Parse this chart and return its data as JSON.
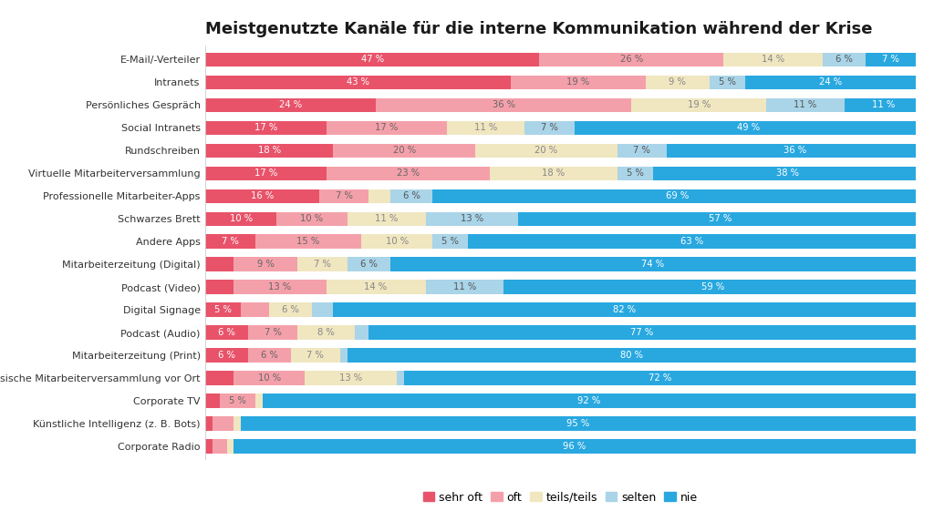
{
  "title": "Meistgenutzte Kanäle für die interne Kommunikation während der Krise",
  "categories": [
    "E-Mail/-Verteiler",
    "Intranets",
    "Persönliches Gespräch",
    "Social Intranets",
    "Rundschreiben",
    "Virtuelle Mitarbeiterversammlung",
    "Professionelle Mitarbeiter-Apps",
    "Schwarzes Brett",
    "Andere Apps",
    "Mitarbeiterzeitung (Digital)",
    "Podcast (Video)",
    "Digital Signage",
    "Podcast (Audio)",
    "Mitarbeiterzeitung (Print)",
    "Klassische Mitarbeiterversammlung vor Ort",
    "Corporate TV",
    "Künstliche Intelligenz (z. B. Bots)",
    "Corporate Radio"
  ],
  "data": [
    [
      47,
      26,
      14,
      6,
      7
    ],
    [
      43,
      19,
      9,
      5,
      24
    ],
    [
      24,
      36,
      19,
      11,
      11
    ],
    [
      17,
      17,
      11,
      7,
      49
    ],
    [
      18,
      20,
      20,
      7,
      36
    ],
    [
      17,
      23,
      18,
      5,
      38
    ],
    [
      16,
      7,
      3,
      6,
      69
    ],
    [
      10,
      10,
      11,
      13,
      57
    ],
    [
      7,
      15,
      10,
      5,
      63
    ],
    [
      4,
      9,
      7,
      6,
      74
    ],
    [
      4,
      13,
      14,
      11,
      59
    ],
    [
      5,
      4,
      6,
      3,
      82
    ],
    [
      6,
      7,
      8,
      2,
      77
    ],
    [
      6,
      6,
      7,
      1,
      80
    ],
    [
      4,
      10,
      13,
      1,
      72
    ],
    [
      2,
      5,
      1,
      0,
      92
    ],
    [
      1,
      3,
      1,
      0,
      95
    ],
    [
      1,
      2,
      1,
      0,
      96
    ]
  ],
  "colors": [
    "#e8536a",
    "#f4a0aa",
    "#f0e6c0",
    "#aad4e8",
    "#29a8e0"
  ],
  "legend_labels": [
    "sehr oft",
    "oft",
    "teils/teils",
    "selten",
    "nie"
  ],
  "background_color": "#ffffff",
  "title_fontsize": 13,
  "label_fontsize": 8.0,
  "bar_label_fontsize": 7.2
}
